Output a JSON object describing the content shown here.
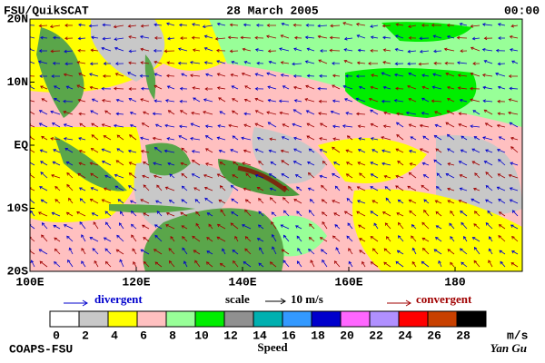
{
  "header": {
    "left": "FSU/QuikSCAT",
    "center": "28 March 2005",
    "right": "00:00"
  },
  "map": {
    "lat_labels": [
      "20N",
      "10N",
      "EQ",
      "10S",
      "20S"
    ],
    "lon_labels": [
      "100E",
      "120E",
      "140E",
      "160E",
      "180"
    ]
  },
  "legend": {
    "divergent": "divergent",
    "scale": "scale",
    "scale_value": "10 m/s",
    "convergent": "convergent"
  },
  "colorbar": {
    "colors": [
      "#ffffff",
      "#c8c8c8",
      "#ffff00",
      "#ffc0c0",
      "#98ff98",
      "#00ee00",
      "#909090",
      "#00b0b0",
      "#3399ff",
      "#0000cc",
      "#ff66ff",
      "#b090ff",
      "#ff0000",
      "#c84000",
      "#000000"
    ],
    "labels": [
      "0",
      "2",
      "4",
      "6",
      "8",
      "10",
      "12",
      "14",
      "16",
      "18",
      "20",
      "22",
      "24",
      "26",
      "28"
    ],
    "unit": "m/s",
    "title": "Speed"
  },
  "footer": {
    "left": "COAPS-FSU",
    "right": "Yan Gu"
  }
}
